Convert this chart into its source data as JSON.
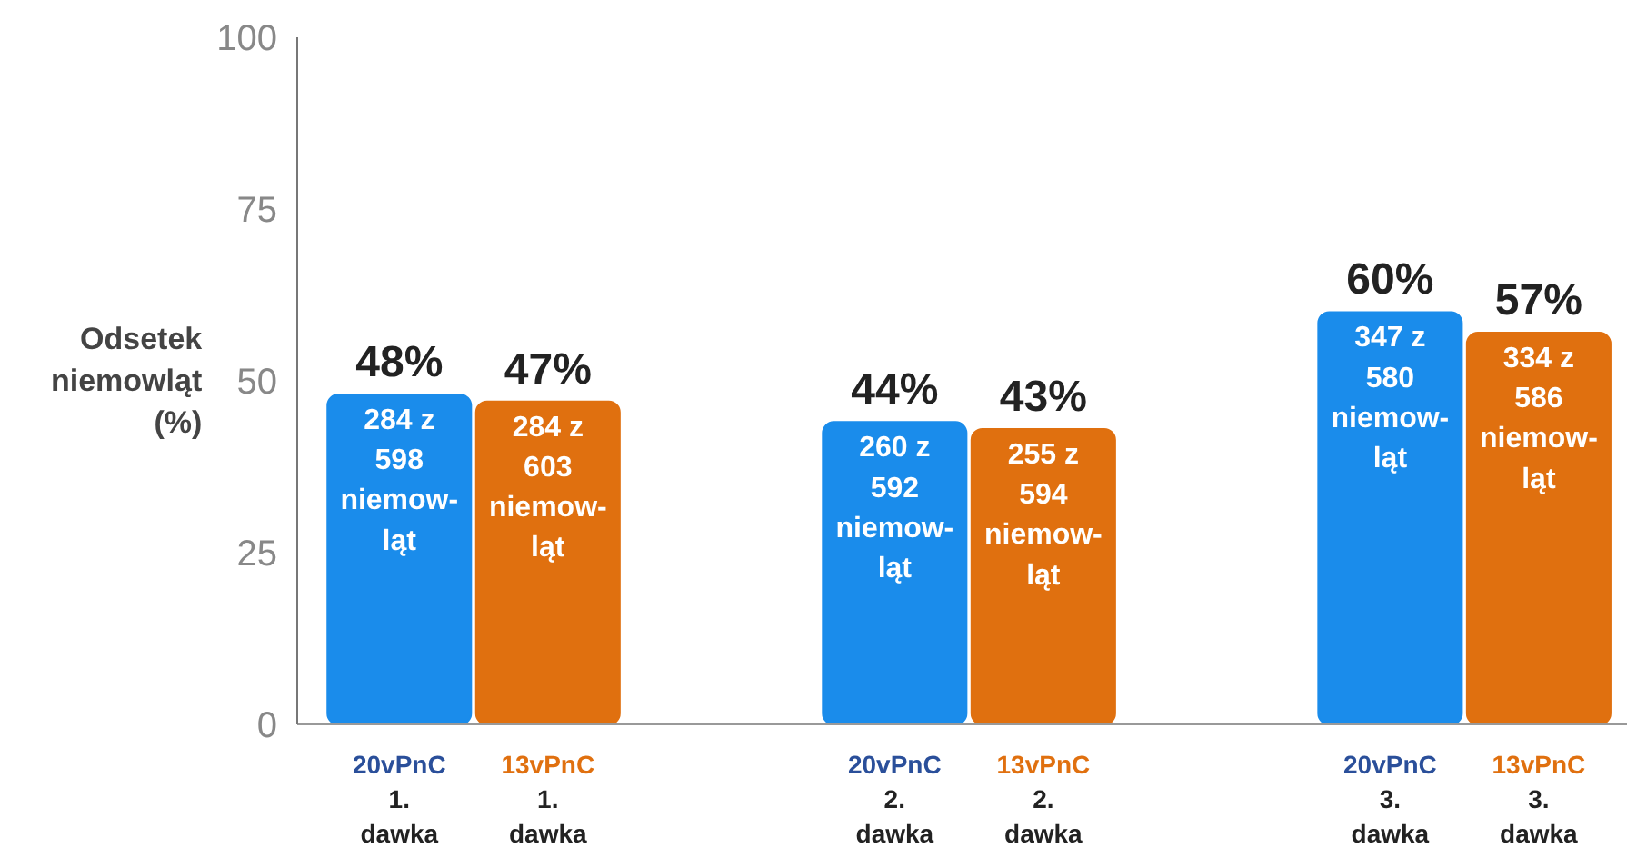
{
  "chart_data": {
    "type": "bar",
    "ylabel": "Odsetek\nniemowląt\n(%)",
    "categories": [
      "1.\ndawka",
      "2.\ndawka",
      "3.\ndawka"
    ],
    "series": [
      {
        "name": "20vPnC",
        "color": "#1a8ceb",
        "values": [
          48,
          44,
          60
        ],
        "value_labels": [
          "48%",
          "44%",
          "60%"
        ]
      },
      {
        "name": "13vPnC",
        "color": "#e0700f",
        "values": [
          47,
          43,
          57
        ],
        "value_labels": [
          "47%",
          "43%",
          "57%"
        ]
      }
    ],
    "annotations": [
      "284 z\n598\nniemow-\nląt",
      "284 z\n603\nniemow-\nląt",
      "260 z\n592\nniemow-\nląt",
      "255 z\n594\nniemow-\nląt",
      "347 z\n580\nniemow-\nląt",
      "334 z\n586\nniemow-\nląt"
    ],
    "ylim": [
      0,
      100
    ],
    "yticks": [
      0,
      25,
      50,
      75,
      100
    ],
    "grid": false
  }
}
